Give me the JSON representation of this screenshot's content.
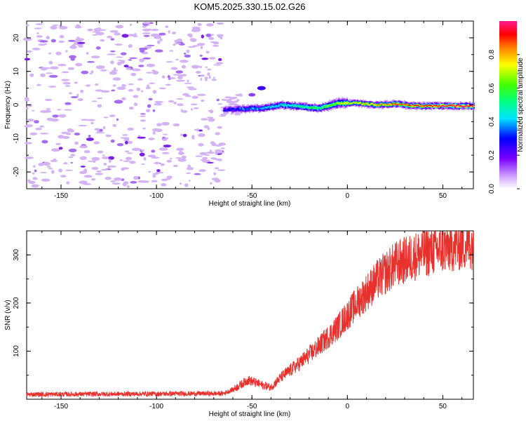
{
  "title": "KOM5.2025.330.15.02.G26",
  "chart_data": [
    {
      "type": "heatmap",
      "xlabel": "Height of straight line (km)",
      "ylabel": "Frequency (Hz)",
      "xlim": [
        -168,
        66
      ],
      "ylim": [
        -25,
        25
      ],
      "xticks": [
        -150,
        -100,
        -50,
        0,
        50
      ],
      "yticks": [
        -20,
        -10,
        0,
        10,
        20
      ],
      "colorbar": {
        "label": "Normalized spectral amplitude",
        "range": [
          0,
          1
        ],
        "ticks": [
          0.0,
          0.2,
          0.4,
          0.6,
          0.8
        ]
      },
      "noise_region_x": [
        -168,
        -65
      ],
      "ridge": {
        "description_points": [
          {
            "x": -65,
            "y": -1.5,
            "amp": 0.25
          },
          {
            "x": -55,
            "y": -1.2,
            "amp": 0.35
          },
          {
            "x": -45,
            "y": -1.0,
            "amp": 0.4
          },
          {
            "x": -35,
            "y": 0.0,
            "amp": 0.45
          },
          {
            "x": -25,
            "y": -0.5,
            "amp": 0.5
          },
          {
            "x": -15,
            "y": -1.0,
            "amp": 0.55
          },
          {
            "x": -5,
            "y": 0.5,
            "amp": 0.7
          },
          {
            "x": 5,
            "y": 0.5,
            "amp": 0.75
          },
          {
            "x": 15,
            "y": 0.0,
            "amp": 0.8
          },
          {
            "x": 25,
            "y": 0.3,
            "amp": 0.85
          },
          {
            "x": 35,
            "y": -0.3,
            "amp": 0.9
          },
          {
            "x": 50,
            "y": -0.3,
            "amp": 0.95
          },
          {
            "x": 66,
            "y": -0.3,
            "amp": 1.0
          }
        ],
        "side_blob": {
          "x": -45,
          "y": 5,
          "amp": 0.2
        }
      }
    },
    {
      "type": "line",
      "xlabel": "Height of straight line (km)",
      "ylabel": "SNR (v/v)",
      "xlim": [
        -168,
        66
      ],
      "ylim": [
        0,
        350
      ],
      "xticks": [
        -150,
        -100,
        -50,
        0,
        50
      ],
      "yticks": [
        100,
        200,
        300
      ],
      "color": "#e8312c",
      "trend": [
        {
          "x": -168,
          "y": 10
        },
        {
          "x": -65,
          "y": 12
        },
        {
          "x": -60,
          "y": 20
        },
        {
          "x": -52,
          "y": 40
        },
        {
          "x": -45,
          "y": 30
        },
        {
          "x": -40,
          "y": 25
        },
        {
          "x": -35,
          "y": 45
        },
        {
          "x": -25,
          "y": 75
        },
        {
          "x": -15,
          "y": 110
        },
        {
          "x": -5,
          "y": 150
        },
        {
          "x": 5,
          "y": 200
        },
        {
          "x": 15,
          "y": 245
        },
        {
          "x": 25,
          "y": 280
        },
        {
          "x": 40,
          "y": 305
        },
        {
          "x": 55,
          "y": 318
        },
        {
          "x": 66,
          "y": 325
        }
      ]
    }
  ]
}
